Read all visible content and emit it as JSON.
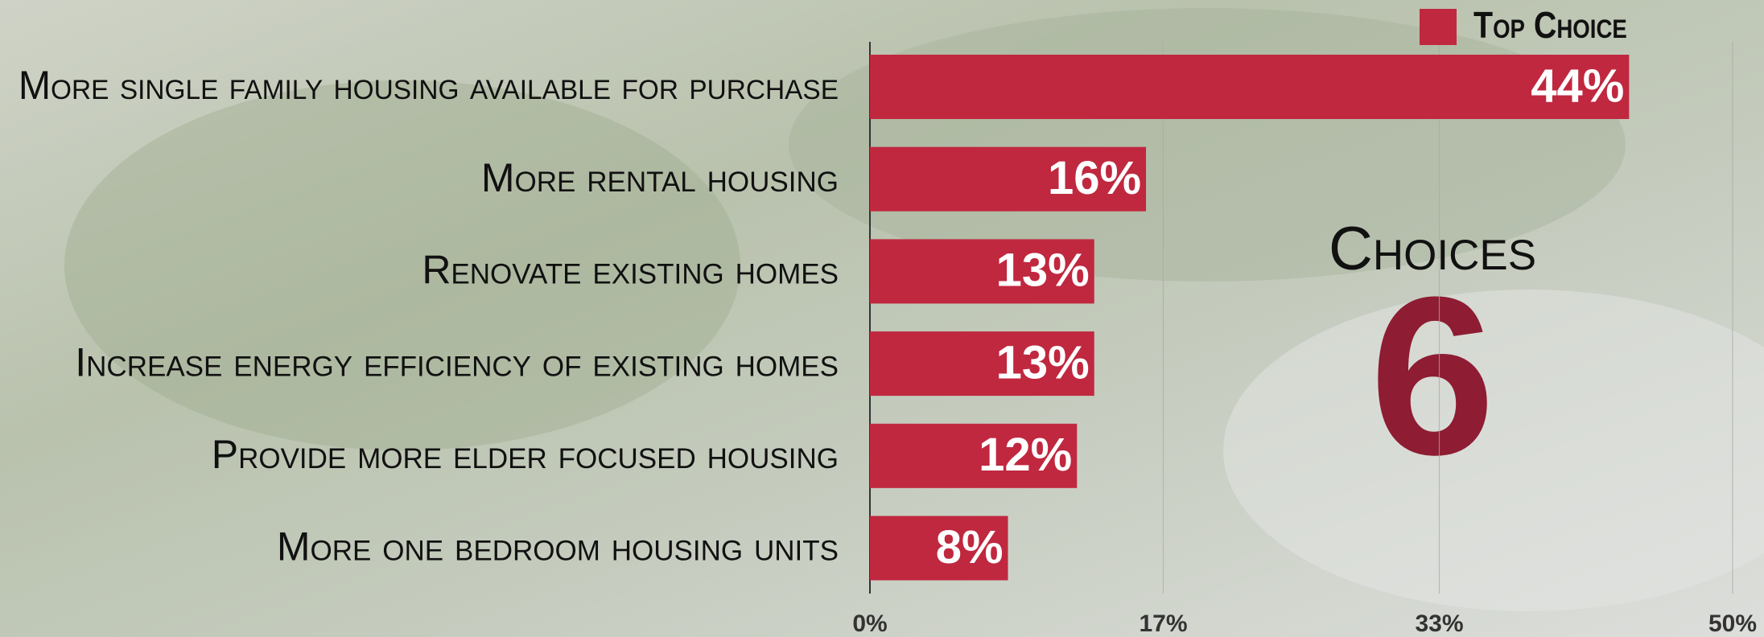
{
  "chart_data": {
    "type": "bar",
    "orientation": "horizontal",
    "categories": [
      "More single family housing available for purchase",
      "More rental housing",
      "Renovate existing homes",
      "Increase energy efficiency of existing homes",
      "Provide more elder focused housing",
      "More one bedroom housing units"
    ],
    "series": [
      {
        "name": "Top Choice",
        "color": "#c0283f",
        "values": [
          44,
          16,
          13,
          13,
          12,
          8
        ],
        "value_labels": [
          "44%",
          "16%",
          "13%",
          "13%",
          "12%",
          "8%"
        ]
      }
    ],
    "xlim": [
      0,
      50
    ],
    "xticks": [
      {
        "value": 0,
        "label": "0%"
      },
      {
        "value": 17,
        "label": "17%"
      },
      {
        "value": 33,
        "label": "33%"
      },
      {
        "value": 50,
        "label": "50%"
      }
    ],
    "grid": true,
    "legend": "top-right",
    "annotation": {
      "label": "Choices",
      "value": 6,
      "color": "#8e1c33"
    }
  }
}
